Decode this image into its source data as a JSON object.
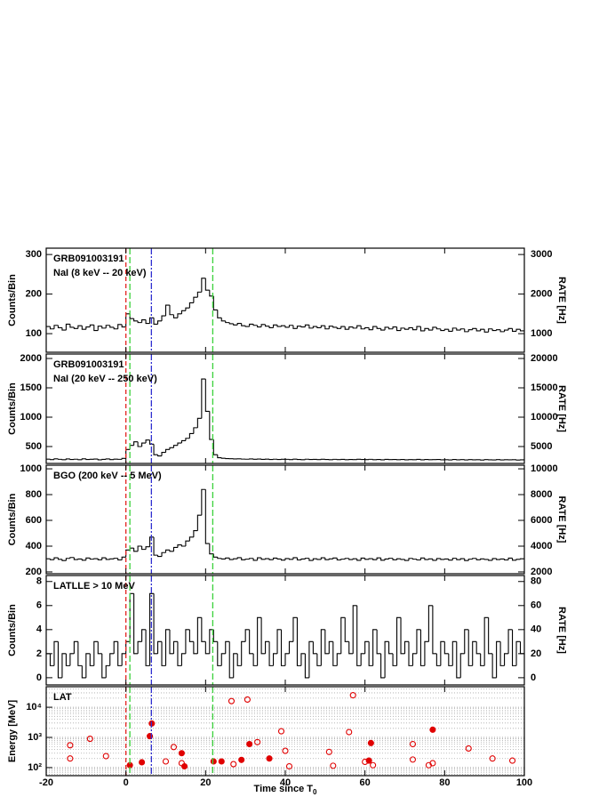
{
  "chart_data": [
    {
      "type": "histogram",
      "labels": [
        "GRB091003191",
        "NaI (8 keV -- 20 keV)"
      ],
      "ylabel": "Counts/Bin",
      "y2label": "RATE [Hz]",
      "xlim": [
        -20,
        100
      ],
      "xticks": [
        -20,
        0,
        20,
        40,
        60,
        80,
        100
      ],
      "ylim": [
        53,
        316
      ],
      "yticks": [
        100,
        200,
        300
      ],
      "y2lim": [
        530,
        3160
      ],
      "y2ticks": [
        1000,
        2000,
        3000
      ],
      "color": "#000000",
      "vlines": [
        {
          "x": 0,
          "color": "#e4231f",
          "dash": "5,3"
        },
        {
          "x": 1,
          "color": "#3ad13a",
          "dash": "7,3"
        },
        {
          "x": 6.4,
          "color": "#3030d0",
          "dash": "7,2,2,2"
        },
        {
          "x": 21.8,
          "color": "#3ad13a",
          "dash": "7,3"
        }
      ],
      "bins": [
        -20,
        -19,
        -18,
        -17,
        -16,
        -15,
        -14,
        -13,
        -12,
        -11,
        -10,
        -9,
        -8,
        -7,
        -6,
        -5,
        -4,
        -3,
        -2,
        -1,
        0,
        1,
        2,
        3,
        4,
        5,
        6,
        7,
        8,
        9,
        10,
        11,
        12,
        13,
        14,
        15,
        16,
        17,
        18,
        19,
        20,
        21,
        22,
        23,
        24,
        25,
        26,
        27,
        28,
        29,
        30,
        31,
        32,
        33,
        34,
        35,
        36,
        37,
        38,
        39,
        40,
        41,
        42,
        43,
        44,
        45,
        46,
        47,
        48,
        49,
        50,
        51,
        52,
        53,
        54,
        55,
        56,
        57,
        58,
        59,
        60,
        61,
        62,
        63,
        64,
        65,
        66,
        67,
        68,
        69,
        70,
        71,
        72,
        73,
        74,
        75,
        76,
        77,
        78,
        79,
        80,
        81,
        82,
        83,
        84,
        85,
        86,
        87,
        88,
        89,
        90,
        91,
        92,
        93,
        94,
        95,
        96,
        97,
        98,
        99,
        100
      ],
      "values": [
        118,
        112,
        121,
        115,
        109,
        124,
        116,
        113,
        120,
        111,
        117,
        122,
        108,
        119,
        114,
        121,
        116,
        112,
        123,
        117,
        150,
        138,
        132,
        128,
        135,
        126,
        140,
        124,
        132,
        145,
        172,
        148,
        140,
        150,
        158,
        165,
        178,
        192,
        205,
        240,
        210,
        195,
        160,
        140,
        132,
        128,
        125,
        122,
        126,
        120,
        118,
        124,
        121,
        117,
        123,
        119,
        115,
        122,
        118,
        120,
        116,
        121,
        113,
        119,
        117,
        122,
        114,
        118,
        115,
        120,
        112,
        119,
        116,
        113,
        118,
        111,
        117,
        114,
        120,
        112,
        115,
        110,
        118,
        113,
        109,
        116,
        112,
        117,
        108,
        114,
        111,
        115,
        110,
        118,
        107,
        113,
        109,
        116,
        112,
        108,
        111,
        106,
        114,
        109,
        112,
        105,
        110,
        113,
        107,
        111,
        104,
        112,
        108,
        110,
        105,
        109,
        113,
        106,
        111,
        107
      ]
    },
    {
      "type": "histogram",
      "labels": [
        "GRB091003191",
        "NaI (20 keV -- 250 keV)"
      ],
      "ylabel": "Counts/Bin",
      "y2label": "RATE [Hz]",
      "xlim": [
        -20,
        100
      ],
      "xticks": [
        -20,
        0,
        20,
        40,
        60,
        80,
        100
      ],
      "ylim": [
        212,
        2076
      ],
      "yticks": [
        500,
        1000,
        1500,
        2000
      ],
      "y2lim": [
        2120,
        20760
      ],
      "y2ticks": [
        5000,
        10000,
        15000,
        20000
      ],
      "color": "#000000",
      "vlines": [
        {
          "x": 0,
          "color": "#e4231f",
          "dash": "5,3"
        },
        {
          "x": 1,
          "color": "#3ad13a",
          "dash": "7,3"
        },
        {
          "x": 6.4,
          "color": "#3030d0",
          "dash": "7,2,2,2"
        },
        {
          "x": 21.8,
          "color": "#3ad13a",
          "dash": "7,3"
        }
      ],
      "bins": [
        -20,
        -19,
        -18,
        -17,
        -16,
        -15,
        -14,
        -13,
        -12,
        -11,
        -10,
        -9,
        -8,
        -7,
        -6,
        -5,
        -4,
        -3,
        -2,
        -1,
        0,
        1,
        2,
        3,
        4,
        5,
        6,
        7,
        8,
        9,
        10,
        11,
        12,
        13,
        14,
        15,
        16,
        17,
        18,
        19,
        20,
        21,
        22,
        23,
        24,
        25,
        26,
        27,
        28,
        29,
        30,
        31,
        32,
        33,
        34,
        35,
        36,
        37,
        38,
        39,
        40,
        41,
        42,
        43,
        44,
        45,
        46,
        47,
        48,
        49,
        50,
        51,
        52,
        53,
        54,
        55,
        56,
        57,
        58,
        59,
        60,
        61,
        62,
        63,
        64,
        65,
        66,
        67,
        68,
        69,
        70,
        71,
        72,
        73,
        74,
        75,
        76,
        77,
        78,
        79,
        80,
        81,
        82,
        83,
        84,
        85,
        86,
        87,
        88,
        89,
        90,
        91,
        92,
        93,
        94,
        95,
        96,
        97,
        98,
        99,
        100
      ],
      "values": [
        285,
        278,
        290,
        282,
        275,
        288,
        280,
        284,
        276,
        291,
        279,
        283,
        287,
        274,
        281,
        289,
        277,
        285,
        282,
        298,
        450,
        520,
        580,
        500,
        560,
        610,
        540,
        360,
        340,
        400,
        450,
        480,
        520,
        560,
        600,
        640,
        720,
        820,
        980,
        1650,
        1100,
        620,
        360,
        310,
        300,
        295,
        292,
        288,
        290,
        286,
        284,
        289,
        283,
        287,
        281,
        285,
        280,
        284,
        279,
        283,
        282,
        278,
        285,
        280,
        276,
        284,
        279,
        281,
        277,
        283,
        280,
        276,
        282,
        278,
        281,
        275,
        280,
        277,
        283,
        279,
        278,
        282,
        276,
        280,
        274,
        281,
        277,
        279,
        275,
        280,
        273,
        278,
        276,
        281,
        274,
        279,
        275,
        277,
        280,
        273,
        276,
        272,
        279,
        274,
        277,
        271,
        278,
        273,
        276,
        270,
        277,
        274,
        272,
        278,
        271,
        275,
        273,
        276,
        270,
        274
      ]
    },
    {
      "type": "histogram",
      "labels": [
        "BGO (200 keV -- 5 MeV)"
      ],
      "ylabel": "Counts/Bin",
      "y2label": "RATE [Hz]",
      "xlim": [
        -20,
        100
      ],
      "xticks": [
        -20,
        0,
        20,
        40,
        60,
        80,
        100
      ],
      "ylim": [
        186,
        1028
      ],
      "yticks": [
        200,
        400,
        600,
        800,
        1000
      ],
      "y2lim": [
        1860,
        10280
      ],
      "y2ticks": [
        2000,
        4000,
        6000,
        8000,
        10000
      ],
      "color": "#000000",
      "vlines": [
        {
          "x": 0,
          "color": "#e4231f",
          "dash": "5,3"
        },
        {
          "x": 1,
          "color": "#3ad13a",
          "dash": "7,3"
        },
        {
          "x": 6.4,
          "color": "#3030d0",
          "dash": "7,2,2,2"
        },
        {
          "x": 21.8,
          "color": "#3ad13a",
          "dash": "7,3"
        }
      ],
      "bins": [
        -20,
        -19,
        -18,
        -17,
        -16,
        -15,
        -14,
        -13,
        -12,
        -11,
        -10,
        -9,
        -8,
        -7,
        -6,
        -5,
        -4,
        -3,
        -2,
        -1,
        0,
        1,
        2,
        3,
        4,
        5,
        6,
        7,
        8,
        9,
        10,
        11,
        12,
        13,
        14,
        15,
        16,
        17,
        18,
        19,
        20,
        21,
        22,
        23,
        24,
        25,
        26,
        27,
        28,
        29,
        30,
        31,
        32,
        33,
        34,
        35,
        36,
        37,
        38,
        39,
        40,
        41,
        42,
        43,
        44,
        45,
        46,
        47,
        48,
        49,
        50,
        51,
        52,
        53,
        54,
        55,
        56,
        57,
        58,
        59,
        60,
        61,
        62,
        63,
        64,
        65,
        66,
        67,
        68,
        69,
        70,
        71,
        72,
        73,
        74,
        75,
        76,
        77,
        78,
        79,
        80,
        81,
        82,
        83,
        84,
        85,
        86,
        87,
        88,
        89,
        90,
        91,
        92,
        93,
        94,
        95,
        96,
        97,
        98,
        99,
        100
      ],
      "values": [
        302,
        295,
        310,
        298,
        288,
        305,
        312,
        296,
        300,
        291,
        308,
        299,
        303,
        294,
        310,
        297,
        301,
        306,
        293,
        315,
        370,
        385,
        360,
        400,
        375,
        395,
        470,
        330,
        320,
        350,
        370,
        360,
        390,
        410,
        400,
        440,
        470,
        520,
        640,
        840,
        420,
        340,
        315,
        305,
        300,
        308,
        296,
        302,
        311,
        294,
        299,
        305,
        290,
        310,
        298,
        303,
        295,
        307,
        300,
        292,
        304,
        298,
        311,
        293,
        300,
        306,
        289,
        302,
        297,
        310,
        295,
        301,
        308,
        293,
        299,
        305,
        296,
        302,
        290,
        307,
        298,
        303,
        295,
        309,
        291,
        300,
        306,
        294,
        302,
        297,
        289,
        305,
        299,
        293,
        308,
        296,
        301,
        290,
        304,
        297,
        300,
        292,
        306,
        295,
        303,
        288,
        299,
        305,
        294,
        301,
        297,
        290,
        304,
        296,
        300,
        293,
        307,
        291,
        298,
        302
      ]
    },
    {
      "type": "histogram",
      "labels": [
        "LATLLE > 10 MeV"
      ],
      "ylabel": "Counts/Bin",
      "y2label": "RATE [Hz]",
      "xlim": [
        -20,
        100
      ],
      "xticks": [
        -20,
        0,
        20,
        40,
        60,
        80,
        100
      ],
      "ylim": [
        -0.6,
        8.5
      ],
      "yticks": [
        0,
        2,
        4,
        6,
        8
      ],
      "y2lim": [
        -6,
        85
      ],
      "y2ticks": [
        0,
        20,
        40,
        60,
        80
      ],
      "color": "#000000",
      "vlines": [
        {
          "x": 0,
          "color": "#e4231f",
          "dash": "5,3"
        },
        {
          "x": 1,
          "color": "#3ad13a",
          "dash": "7,3"
        },
        {
          "x": 6.4,
          "color": "#3030d0",
          "dash": "7,2,2,2"
        },
        {
          "x": 21.8,
          "color": "#3ad13a",
          "dash": "7,3"
        }
      ],
      "bins": [
        -20,
        -19,
        -18,
        -17,
        -16,
        -15,
        -14,
        -13,
        -12,
        -11,
        -10,
        -9,
        -8,
        -7,
        -6,
        -5,
        -4,
        -3,
        -2,
        -1,
        0,
        1,
        2,
        3,
        4,
        5,
        6,
        7,
        8,
        9,
        10,
        11,
        12,
        13,
        14,
        15,
        16,
        17,
        18,
        19,
        20,
        21,
        22,
        23,
        24,
        25,
        26,
        27,
        28,
        29,
        30,
        31,
        32,
        33,
        34,
        35,
        36,
        37,
        38,
        39,
        40,
        41,
        42,
        43,
        44,
        45,
        46,
        47,
        48,
        49,
        50,
        51,
        52,
        53,
        54,
        55,
        56,
        57,
        58,
        59,
        60,
        61,
        62,
        63,
        64,
        65,
        66,
        67,
        68,
        69,
        70,
        71,
        72,
        73,
        74,
        75,
        76,
        77,
        78,
        79,
        80,
        81,
        82,
        83,
        84,
        85,
        86,
        87,
        88,
        89,
        90,
        91,
        92,
        93,
        94,
        95,
        96,
        97,
        98,
        99,
        100
      ],
      "values": [
        2,
        1,
        3,
        0,
        2,
        1,
        2,
        3,
        1,
        0,
        2,
        1,
        3,
        2,
        0,
        1,
        2,
        3,
        1,
        2,
        3,
        7,
        2,
        3,
        4,
        1,
        7,
        2,
        3,
        1,
        4,
        2,
        3,
        1,
        2,
        4,
        3,
        2,
        5,
        3,
        2,
        4,
        3,
        1,
        2,
        3,
        0,
        2,
        1,
        3,
        4,
        2,
        1,
        5,
        2,
        3,
        1,
        2,
        4,
        1,
        2,
        3,
        5,
        1,
        2,
        0,
        3,
        2,
        1,
        4,
        2,
        3,
        1,
        2,
        5,
        3,
        2,
        6,
        1,
        2,
        3,
        1,
        4,
        2,
        0,
        3,
        2,
        1,
        5,
        2,
        3,
        1,
        2,
        4,
        1,
        3,
        6,
        2,
        1,
        3,
        2,
        1,
        3,
        0,
        2,
        4,
        1,
        3,
        2,
        1,
        5,
        2,
        0,
        3,
        1,
        2,
        4,
        1,
        3,
        2
      ]
    },
    {
      "type": "scatter",
      "labels": [
        "LAT"
      ],
      "ylabel": "Energy [MeV]",
      "xlabel": "Time since T",
      "xlabel_sub": "0",
      "log": true,
      "grid": true,
      "xlim": [
        -20,
        100
      ],
      "xticks": [
        -20,
        0,
        20,
        40,
        60,
        80,
        100
      ],
      "ylim": [
        54,
        48000
      ],
      "yticks": [
        {
          "value": 100,
          "label": "10²"
        },
        {
          "value": 1000,
          "label": "10³"
        },
        {
          "value": 10000,
          "label": "10⁴"
        }
      ],
      "minor_yticks": [
        60,
        70,
        80,
        90,
        200,
        300,
        400,
        500,
        600,
        700,
        800,
        900,
        2000,
        3000,
        4000,
        5000,
        6000,
        7000,
        8000,
        9000,
        20000,
        30000,
        40000
      ],
      "vlines": [
        {
          "x": 0,
          "color": "#e4231f",
          "dash": "5,3"
        },
        {
          "x": 1,
          "color": "#3ad13a",
          "dash": "7,3"
        },
        {
          "x": 6.4,
          "color": "#3030d0",
          "dash": "7,2,2,2"
        },
        {
          "x": 21.8,
          "color": "#3ad13a",
          "dash": "7,3"
        }
      ],
      "series": [
        {
          "color": "#e00000",
          "filled": true,
          "x": [
            1,
            4,
            6,
            6.5,
            14,
            14.7,
            22,
            24,
            29,
            31,
            36,
            61,
            61.5,
            77
          ],
          "values": [
            120,
            150,
            1100,
            2900,
            300,
            110,
            160,
            160,
            180,
            600,
            200,
            170,
            650,
            1800
          ]
        },
        {
          "color": "#e00000",
          "filled": false,
          "x": [
            -14,
            -14,
            -9,
            -5,
            10,
            12,
            14,
            26.5,
            30.5,
            27,
            33,
            39,
            40,
            41,
            51,
            52,
            56,
            57,
            60,
            62,
            72,
            72,
            76,
            77,
            86,
            92,
            97
          ],
          "values": [
            550,
            200,
            900,
            240,
            160,
            480,
            140,
            16000,
            18000,
            130,
            700,
            1600,
            360,
            110,
            330,
            115,
            1500,
            25000,
            155,
            120,
            600,
            185,
            120,
            140,
            430,
            200,
            170
          ]
        }
      ]
    }
  ]
}
